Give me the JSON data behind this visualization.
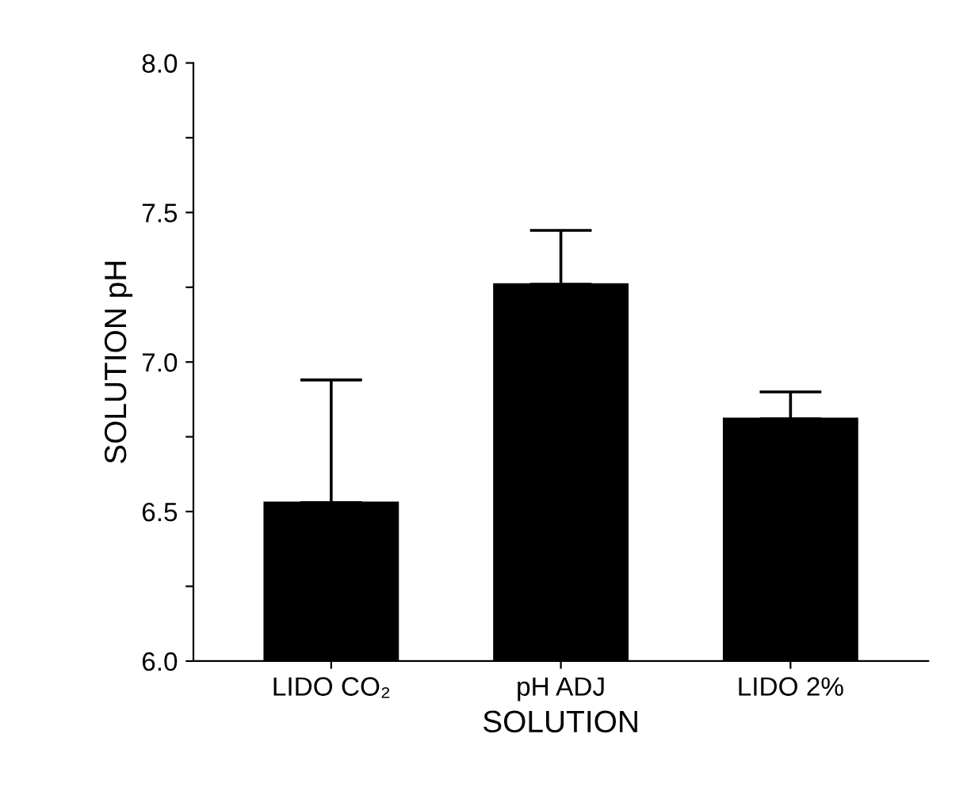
{
  "chart_data": {
    "type": "bar",
    "xlabel": "SOLUTION",
    "ylabel": "SOLUTION pH",
    "categories": [
      "LIDO CO₂",
      "pH ADJ",
      "LIDO 2%"
    ],
    "values": [
      6.53,
      7.26,
      6.81
    ],
    "errors": [
      [
        6.53,
        6.94
      ],
      [
        7.26,
        7.44
      ],
      [
        6.81,
        6.9
      ]
    ],
    "color": "#000000",
    "ylim": [
      6.0,
      8.0
    ],
    "yticks": [
      {
        "value": 6,
        "label": "6.0"
      },
      {
        "value": 6.25,
        "label": null
      },
      6.5,
      {
        "value": 6.75,
        "label": null
      },
      {
        "value": 7,
        "label": "7.0"
      },
      {
        "value": 7.25,
        "label": null
      },
      7.5,
      {
        "value": 7.75,
        "label": null
      },
      {
        "value": 8,
        "label": "8.0"
      }
    ],
    "grid": false
  }
}
